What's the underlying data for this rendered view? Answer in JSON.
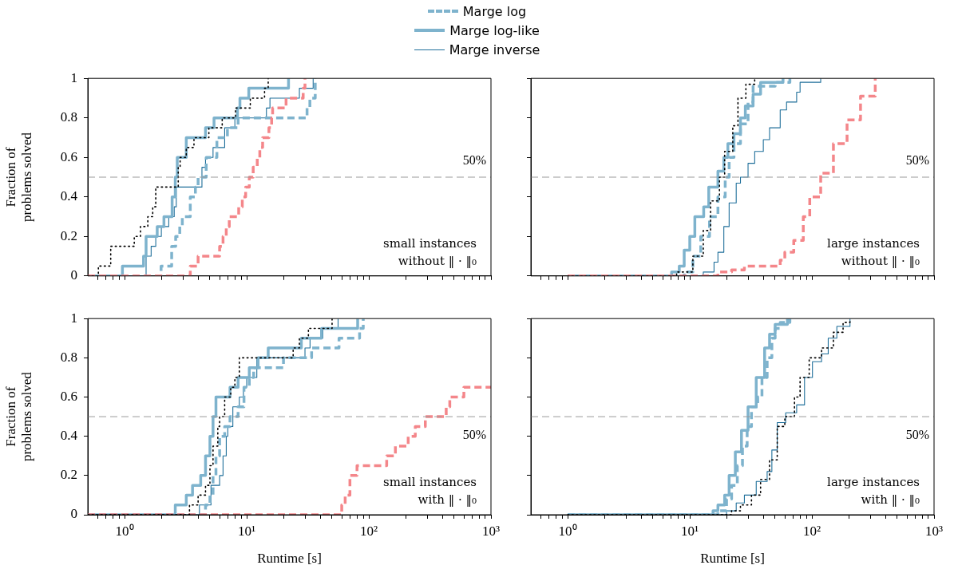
{
  "chart_data": [
    {
      "type": "line",
      "ylabel": "Fraction of problems solved",
      "xlim": [
        0.5,
        1000
      ],
      "ylim": [
        0,
        1
      ],
      "log": "x",
      "tick_labels": "y",
      "legend": "top",
      "xticks": [
        {
          "value": 0.6,
          "label": null
        },
        {
          "value": 0.7,
          "label": null
        },
        {
          "value": 0.8,
          "label": null
        },
        {
          "value": 0.9,
          "label": null
        },
        {
          "value": 1,
          "label": null
        },
        {
          "value": 2,
          "label": null
        },
        {
          "value": 3,
          "label": null
        },
        {
          "value": 4,
          "label": null
        },
        {
          "value": 5,
          "label": null
        },
        {
          "value": 6,
          "label": null
        },
        {
          "value": 7,
          "label": null
        },
        {
          "value": 8,
          "label": null
        },
        {
          "value": 9,
          "label": null
        },
        {
          "value": 10,
          "label": null
        },
        {
          "value": 20,
          "label": null
        },
        {
          "value": 30,
          "label": null
        },
        {
          "value": 40,
          "label": null
        },
        {
          "value": 50,
          "label": null
        },
        {
          "value": 60,
          "label": null
        },
        {
          "value": 70,
          "label": null
        },
        {
          "value": 80,
          "label": null
        },
        {
          "value": 90,
          "label": null
        },
        {
          "value": 100,
          "label": null
        },
        {
          "value": 200,
          "label": null
        },
        {
          "value": 300,
          "label": null
        },
        {
          "value": 400,
          "label": null
        },
        {
          "value": 500,
          "label": null
        },
        {
          "value": 600,
          "label": null
        },
        {
          "value": 700,
          "label": null
        },
        {
          "value": 800,
          "label": null
        },
        {
          "value": 900,
          "label": null
        },
        {
          "value": 1000,
          "label": null
        }
      ],
      "yticks": [
        0,
        0.2,
        0.4,
        0.6,
        0.8,
        1
      ],
      "ref_lines": [
        {
          "axis": "y",
          "value": 0.5,
          "label": "50%",
          "color": "#999999",
          "line_style": "dashed"
        }
      ],
      "annotations": [
        "small instances without ‖ · ‖₀"
      ],
      "series": [
        {
          "color": "#000000",
          "line_style": "dotted",
          "x": [
            0.5,
            0.61,
            0.61,
            0.77,
            0.77,
            1.2,
            1.2,
            1.35,
            1.35,
            1.55,
            1.55,
            1.7,
            1.7,
            1.8,
            1.8,
            2.75,
            2.75,
            2.85,
            2.85,
            3.2,
            3.2,
            3.7,
            3.7,
            4.9,
            4.9,
            6.3,
            6.3,
            8.1,
            8.1,
            10.7,
            10.7,
            14,
            14,
            15,
            15
          ],
          "values": [
            0,
            0,
            0.05,
            0.05,
            0.15,
            0.15,
            0.2,
            0.2,
            0.25,
            0.25,
            0.3,
            0.3,
            0.35,
            0.35,
            0.45,
            0.45,
            0.55,
            0.55,
            0.6,
            0.6,
            0.65,
            0.65,
            0.7,
            0.7,
            0.75,
            0.75,
            0.8,
            0.8,
            0.85,
            0.85,
            0.9,
            0.9,
            0.95,
            0.95,
            1
          ]
        },
        {
          "color": "#f4868a",
          "line_style": "dashed",
          "x": [
            0.5,
            3.45,
            3.45,
            4,
            4,
            6,
            6,
            6.4,
            6.4,
            6.8,
            6.8,
            7.2,
            7.2,
            8.6,
            8.6,
            9.2,
            9.2,
            9.8,
            9.8,
            10.5,
            10.5,
            11.3,
            11.3,
            12.2,
            12.2,
            12.8,
            12.8,
            13.5,
            13.5,
            15.2,
            15.2,
            16,
            16,
            16.3,
            16.3,
            21,
            21,
            29,
            29,
            30,
            30
          ],
          "values": [
            0,
            0,
            0.05,
            0.05,
            0.1,
            0.1,
            0.15,
            0.15,
            0.2,
            0.2,
            0.25,
            0.25,
            0.3,
            0.3,
            0.35,
            0.35,
            0.4,
            0.4,
            0.45,
            0.45,
            0.5,
            0.5,
            0.55,
            0.55,
            0.6,
            0.6,
            0.65,
            0.65,
            0.7,
            0.7,
            0.75,
            0.75,
            0.8,
            0.8,
            0.85,
            0.85,
            0.9,
            0.9,
            0.95,
            0.95,
            1
          ]
        },
        {
          "name": "Marge log",
          "color": "#7eb3cd",
          "line_style": "dashed",
          "x": [
            0.5,
            1.99,
            1.99,
            2.43,
            2.43,
            2.62,
            2.62,
            2.83,
            2.83,
            2.97,
            2.97,
            3.45,
            3.45,
            3.8,
            3.8,
            4,
            4,
            4.66,
            4.66,
            5.7,
            5.7,
            6.95,
            6.95,
            8.5,
            8.5,
            31.2,
            31.2,
            32.9,
            32.9,
            36.4,
            36.4
          ],
          "values": [
            0,
            0,
            0.05,
            0.05,
            0.15,
            0.15,
            0.2,
            0.2,
            0.25,
            0.25,
            0.3,
            0.3,
            0.4,
            0.4,
            0.45,
            0.45,
            0.5,
            0.5,
            0.6,
            0.6,
            0.7,
            0.7,
            0.75,
            0.75,
            0.8,
            0.8,
            0.85,
            0.85,
            0.9,
            0.9,
            1
          ]
        },
        {
          "name": "Marge log-like",
          "color": "#7eb3cd",
          "line_style": "solid",
          "x": [
            0.5,
            0.96,
            0.96,
            1.43,
            1.43,
            1.5,
            1.5,
            1.85,
            1.85,
            2.1,
            2.1,
            2.45,
            2.45,
            2.6,
            2.6,
            2.7,
            2.7,
            3.2,
            3.2,
            4.6,
            4.6,
            5.4,
            5.4,
            8.4,
            8.4,
            8.8,
            8.8,
            10.4,
            10.4,
            22,
            22
          ],
          "values": [
            0,
            0,
            0.05,
            0.05,
            0.1,
            0.1,
            0.2,
            0.2,
            0.25,
            0.25,
            0.3,
            0.3,
            0.4,
            0.4,
            0.5,
            0.5,
            0.6,
            0.6,
            0.7,
            0.7,
            0.75,
            0.75,
            0.8,
            0.8,
            0.85,
            0.85,
            0.9,
            0.9,
            0.95,
            0.95,
            1
          ]
        },
        {
          "name": "Marge inverse",
          "color": "#1f6f9a",
          "line_style": "solid",
          "x": [
            0.5,
            1.5,
            1.5,
            1.65,
            1.65,
            1.8,
            1.8,
            2,
            2,
            2.3,
            2.3,
            2.55,
            2.55,
            2.65,
            2.65,
            4.3,
            4.3,
            4.6,
            4.6,
            5.3,
            5.3,
            6.6,
            6.6,
            8,
            8,
            14.5,
            14.5,
            15.5,
            15.5,
            27,
            27,
            35,
            35
          ],
          "values": [
            0,
            0,
            0.1,
            0.1,
            0.15,
            0.15,
            0.2,
            0.2,
            0.25,
            0.25,
            0.3,
            0.3,
            0.35,
            0.35,
            0.45,
            0.45,
            0.55,
            0.55,
            0.6,
            0.6,
            0.65,
            0.65,
            0.75,
            0.75,
            0.8,
            0.8,
            0.85,
            0.85,
            0.9,
            0.9,
            0.95,
            0.95,
            1
          ]
        }
      ]
    },
    {
      "type": "line",
      "xlim": [
        0.5,
        1000
      ],
      "ylim": [
        0,
        1
      ],
      "log": "x",
      "tick_labels": false,
      "xticks": [
        {
          "value": 0.6,
          "label": null
        },
        {
          "value": 0.7,
          "label": null
        },
        {
          "value": 0.8,
          "label": null
        },
        {
          "value": 0.9,
          "label": null
        },
        {
          "value": 1,
          "label": null
        },
        {
          "value": 2,
          "label": null
        },
        {
          "value": 3,
          "label": null
        },
        {
          "value": 4,
          "label": null
        },
        {
          "value": 5,
          "label": null
        },
        {
          "value": 6,
          "label": null
        },
        {
          "value": 7,
          "label": null
        },
        {
          "value": 8,
          "label": null
        },
        {
          "value": 9,
          "label": null
        },
        {
          "value": 10,
          "label": null
        },
        {
          "value": 20,
          "label": null
        },
        {
          "value": 30,
          "label": null
        },
        {
          "value": 40,
          "label": null
        },
        {
          "value": 50,
          "label": null
        },
        {
          "value": 60,
          "label": null
        },
        {
          "value": 70,
          "label": null
        },
        {
          "value": 80,
          "label": null
        },
        {
          "value": 90,
          "label": null
        },
        {
          "value": 100,
          "label": null
        },
        {
          "value": 200,
          "label": null
        },
        {
          "value": 300,
          "label": null
        },
        {
          "value": 400,
          "label": null
        },
        {
          "value": 500,
          "label": null
        },
        {
          "value": 600,
          "label": null
        },
        {
          "value": 700,
          "label": null
        },
        {
          "value": 800,
          "label": null
        },
        {
          "value": 900,
          "label": null
        },
        {
          "value": 1000,
          "label": null
        }
      ],
      "yticks": [
        {
          "value": 0,
          "label": null
        },
        {
          "value": 0.2,
          "label": null
        },
        {
          "value": 0.4,
          "label": null
        },
        {
          "value": 0.6,
          "label": null
        },
        {
          "value": 0.8,
          "label": null
        },
        {
          "value": 1,
          "label": null
        }
      ],
      "ref_lines": [
        {
          "axis": "y",
          "value": 0.5,
          "label": "50%",
          "color": "#999999",
          "line_style": "dashed"
        }
      ],
      "annotations": [
        "large instances without ‖ · ‖₀"
      ],
      "series": [
        {
          "color": "#000000",
          "line_style": "dotted",
          "x": [
            1,
            7.8,
            7.8,
            10.6,
            10.6,
            12.9,
            12.9,
            14.8,
            14.8,
            17.5,
            17.5,
            19.3,
            19.3,
            22.5,
            22.5,
            24.8,
            24.8,
            28.8,
            28.8,
            34,
            34
          ],
          "values": [
            0,
            0,
            0.02,
            0.02,
            0.1,
            0.1,
            0.23,
            0.23,
            0.38,
            0.38,
            0.5,
            0.5,
            0.63,
            0.63,
            0.76,
            0.76,
            0.9,
            0.9,
            0.97,
            0.97,
            1
          ]
        },
        {
          "color": "#f4868a",
          "line_style": "dashed",
          "x": [
            1,
            17,
            17,
            22,
            22,
            28,
            28,
            55,
            55,
            60,
            60,
            71,
            71,
            85,
            85,
            96,
            96,
            118,
            118,
            150,
            150,
            194,
            194,
            250,
            250,
            330,
            330
          ],
          "values": [
            0,
            0,
            0.02,
            0.02,
            0.03,
            0.03,
            0.05,
            0.05,
            0.08,
            0.08,
            0.12,
            0.12,
            0.18,
            0.18,
            0.3,
            0.3,
            0.4,
            0.4,
            0.52,
            0.52,
            0.67,
            0.67,
            0.79,
            0.79,
            0.91,
            0.91,
            1
          ]
        },
        {
          "color": "#7eb3cd",
          "line_style": "dashed",
          "x": [
            1,
            9,
            9,
            10.6,
            10.6,
            12.3,
            12.3,
            14.5,
            14.5,
            17,
            17,
            19.5,
            19.5,
            21,
            21,
            23,
            23,
            26,
            26,
            30,
            30,
            33,
            33,
            50,
            50,
            66,
            66
          ],
          "values": [
            0,
            0,
            0.02,
            0.02,
            0.1,
            0.1,
            0.2,
            0.2,
            0.3,
            0.3,
            0.4,
            0.4,
            0.5,
            0.5,
            0.6,
            0.6,
            0.67,
            0.67,
            0.77,
            0.77,
            0.88,
            0.88,
            0.96,
            0.96,
            0.98,
            0.98,
            1
          ]
        },
        {
          "color": "#7eb3cd",
          "line_style": "solid",
          "x": [
            1,
            7.1,
            7.1,
            8.2,
            8.2,
            9,
            9,
            10,
            10,
            11,
            11,
            13,
            13,
            14.3,
            14.3,
            17,
            17,
            19,
            19,
            20.5,
            20.5,
            23,
            23,
            26,
            26,
            28.5,
            28.5,
            33,
            33,
            38,
            38,
            58,
            58
          ],
          "values": [
            0,
            0,
            0.02,
            0.02,
            0.05,
            0.05,
            0.13,
            0.13,
            0.2,
            0.2,
            0.3,
            0.3,
            0.35,
            0.35,
            0.45,
            0.45,
            0.53,
            0.53,
            0.6,
            0.6,
            0.67,
            0.67,
            0.72,
            0.72,
            0.8,
            0.8,
            0.86,
            0.86,
            0.92,
            0.92,
            0.98,
            0.98,
            1
          ]
        },
        {
          "color": "#1f6f9a",
          "line_style": "solid",
          "x": [
            1,
            12.9,
            12.9,
            15.8,
            15.8,
            17,
            17,
            19,
            19,
            21,
            21,
            24,
            24,
            26,
            26,
            30,
            30,
            34,
            34,
            40,
            40,
            45,
            45,
            55,
            55,
            62,
            62,
            75,
            75,
            80,
            80,
            118,
            118
          ],
          "values": [
            0,
            0,
            0.02,
            0.02,
            0.07,
            0.07,
            0.12,
            0.12,
            0.25,
            0.25,
            0.37,
            0.37,
            0.47,
            0.47,
            0.5,
            0.5,
            0.57,
            0.57,
            0.63,
            0.63,
            0.69,
            0.69,
            0.75,
            0.75,
            0.84,
            0.84,
            0.88,
            0.88,
            0.93,
            0.93,
            0.98,
            0.98,
            1
          ]
        }
      ]
    },
    {
      "type": "line",
      "xlabel": "Runtime [s]",
      "ylabel": "Fraction of problems solved",
      "xlim": [
        0.5,
        1000
      ],
      "ylim": [
        0,
        1
      ],
      "log": "x",
      "xticks": [
        {
          "value": 0.6,
          "label": null
        },
        {
          "value": 0.7,
          "label": null
        },
        {
          "value": 0.8,
          "label": null
        },
        {
          "value": 0.9,
          "label": null
        },
        {
          "value": 1,
          "label": "10⁰"
        },
        {
          "value": 2,
          "label": null
        },
        {
          "value": 3,
          "label": null
        },
        {
          "value": 4,
          "label": null
        },
        {
          "value": 5,
          "label": null
        },
        {
          "value": 6,
          "label": null
        },
        {
          "value": 7,
          "label": null
        },
        {
          "value": 8,
          "label": null
        },
        {
          "value": 9,
          "label": null
        },
        {
          "value": 10,
          "label": "10¹"
        },
        {
          "value": 20,
          "label": null
        },
        {
          "value": 30,
          "label": null
        },
        {
          "value": 40,
          "label": null
        },
        {
          "value": 50,
          "label": null
        },
        {
          "value": 60,
          "label": null
        },
        {
          "value": 70,
          "label": null
        },
        {
          "value": 80,
          "label": null
        },
        {
          "value": 90,
          "label": null
        },
        {
          "value": 100,
          "label": "10²"
        },
        {
          "value": 200,
          "label": null
        },
        {
          "value": 300,
          "label": null
        },
        {
          "value": 400,
          "label": null
        },
        {
          "value": 500,
          "label": null
        },
        {
          "value": 600,
          "label": null
        },
        {
          "value": 700,
          "label": null
        },
        {
          "value": 800,
          "label": null
        },
        {
          "value": 900,
          "label": null
        },
        {
          "value": 1000,
          "label": "10³"
        }
      ],
      "yticks": [
        0,
        0.2,
        0.4,
        0.6,
        0.8,
        1
      ],
      "ref_lines": [
        {
          "axis": "y",
          "value": 0.5,
          "label": "50%",
          "color": "#999999",
          "line_style": "dashed"
        }
      ],
      "annotations": [
        "small instances with ‖ · ‖₀"
      ],
      "series": [
        {
          "color": "#000000",
          "line_style": "dotted",
          "x": [
            0.5,
            3.4,
            3.4,
            4,
            4,
            4.6,
            4.6,
            5,
            5,
            5.3,
            5.3,
            5.8,
            5.8,
            6,
            6,
            6.6,
            6.6,
            7.4,
            7.4,
            8,
            8,
            8.7,
            8.7,
            24,
            24,
            27,
            27,
            32,
            32,
            50,
            50
          ],
          "values": [
            0,
            0,
            0.05,
            0.05,
            0.1,
            0.1,
            0.15,
            0.15,
            0.25,
            0.25,
            0.35,
            0.35,
            0.45,
            0.45,
            0.5,
            0.5,
            0.6,
            0.6,
            0.65,
            0.65,
            0.7,
            0.7,
            0.8,
            0.8,
            0.85,
            0.85,
            0.9,
            0.9,
            0.95,
            0.95,
            1
          ]
        },
        {
          "color": "#f4868a",
          "line_style": "dashed",
          "x": [
            0.5,
            60,
            60,
            64,
            64,
            70,
            70,
            80,
            80,
            140,
            140,
            165,
            165,
            210,
            210,
            240,
            240,
            290,
            290,
            430,
            430,
            460,
            460,
            600,
            600,
            1000
          ],
          "values": [
            0,
            0,
            0.05,
            0.05,
            0.1,
            0.1,
            0.2,
            0.2,
            0.25,
            0.25,
            0.3,
            0.3,
            0.35,
            0.35,
            0.4,
            0.4,
            0.45,
            0.45,
            0.5,
            0.5,
            0.55,
            0.55,
            0.6,
            0.6,
            0.65,
            0.65
          ]
        },
        {
          "color": "#7eb3cd",
          "line_style": "dashed",
          "x": [
            0.5,
            4.6,
            4.6,
            5,
            5,
            5.3,
            5.3,
            5.6,
            5.6,
            6,
            6,
            6.6,
            6.6,
            7.3,
            7.3,
            8.5,
            8.5,
            9.5,
            9.5,
            10.5,
            10.5,
            11.4,
            11.4,
            20,
            20,
            34,
            34,
            57,
            57,
            84,
            84,
            90,
            90
          ],
          "values": [
            0,
            0,
            0.05,
            0.05,
            0.1,
            0.1,
            0.2,
            0.2,
            0.3,
            0.3,
            0.4,
            0.4,
            0.45,
            0.45,
            0.5,
            0.5,
            0.55,
            0.55,
            0.65,
            0.65,
            0.7,
            0.7,
            0.75,
            0.75,
            0.8,
            0.8,
            0.85,
            0.85,
            0.9,
            0.9,
            0.95,
            0.95,
            1
          ]
        },
        {
          "color": "#7eb3cd",
          "line_style": "solid",
          "x": [
            0.5,
            2.6,
            2.6,
            3.2,
            3.2,
            3.6,
            3.6,
            4.2,
            4.2,
            4.6,
            4.6,
            5,
            5,
            5.3,
            5.3,
            5.6,
            5.6,
            7.3,
            7.3,
            8.5,
            8.5,
            10.5,
            10.5,
            12.4,
            12.4,
            15,
            15,
            28,
            28,
            41,
            41,
            81,
            81
          ],
          "values": [
            0,
            0,
            0.05,
            0.05,
            0.1,
            0.1,
            0.15,
            0.15,
            0.2,
            0.2,
            0.3,
            0.3,
            0.4,
            0.4,
            0.5,
            0.5,
            0.6,
            0.6,
            0.65,
            0.65,
            0.7,
            0.7,
            0.75,
            0.75,
            0.8,
            0.8,
            0.85,
            0.85,
            0.9,
            0.9,
            0.95,
            0.95,
            1
          ]
        },
        {
          "color": "#1f6f9a",
          "line_style": "solid",
          "x": [
            0.5,
            4.1,
            4.1,
            5.1,
            5.1,
            6,
            6,
            6.4,
            6.4,
            6.8,
            6.8,
            7,
            7,
            7.7,
            7.7,
            8.7,
            8.7,
            9.4,
            9.4,
            10,
            10,
            12.1,
            12.1,
            30,
            30,
            33,
            33,
            42,
            42,
            56,
            56
          ],
          "values": [
            0,
            0,
            0.05,
            0.05,
            0.15,
            0.15,
            0.2,
            0.2,
            0.3,
            0.3,
            0.4,
            0.4,
            0.45,
            0.45,
            0.55,
            0.55,
            0.6,
            0.6,
            0.65,
            0.65,
            0.7,
            0.7,
            0.8,
            0.8,
            0.85,
            0.85,
            0.9,
            0.9,
            0.95,
            0.95,
            1
          ]
        }
      ]
    },
    {
      "type": "line",
      "xlabel": "Runtime [s]",
      "xlim": [
        0.5,
        1000
      ],
      "ylim": [
        0,
        1
      ],
      "log": "x",
      "tick_labels": "x",
      "xticks": [
        {
          "value": 0.6,
          "label": null
        },
        {
          "value": 0.7,
          "label": null
        },
        {
          "value": 0.8,
          "label": null
        },
        {
          "value": 0.9,
          "label": null
        },
        {
          "value": 1,
          "label": "10⁰"
        },
        {
          "value": 2,
          "label": null
        },
        {
          "value": 3,
          "label": null
        },
        {
          "value": 4,
          "label": null
        },
        {
          "value": 5,
          "label": null
        },
        {
          "value": 6,
          "label": null
        },
        {
          "value": 7,
          "label": null
        },
        {
          "value": 8,
          "label": null
        },
        {
          "value": 9,
          "label": null
        },
        {
          "value": 10,
          "label": "10¹"
        },
        {
          "value": 20,
          "label": null
        },
        {
          "value": 30,
          "label": null
        },
        {
          "value": 40,
          "label": null
        },
        {
          "value": 50,
          "label": null
        },
        {
          "value": 60,
          "label": null
        },
        {
          "value": 70,
          "label": null
        },
        {
          "value": 80,
          "label": null
        },
        {
          "value": 90,
          "label": null
        },
        {
          "value": 100,
          "label": "10²"
        },
        {
          "value": 200,
          "label": null
        },
        {
          "value": 300,
          "label": null
        },
        {
          "value": 400,
          "label": null
        },
        {
          "value": 500,
          "label": null
        },
        {
          "value": 600,
          "label": null
        },
        {
          "value": 700,
          "label": null
        },
        {
          "value": 800,
          "label": null
        },
        {
          "value": 900,
          "label": null
        },
        {
          "value": 1000,
          "label": "10³"
        }
      ],
      "yticks": [
        {
          "value": 0,
          "label": null
        },
        {
          "value": 0.2,
          "label": null
        },
        {
          "value": 0.4,
          "label": null
        },
        {
          "value": 0.6,
          "label": null
        },
        {
          "value": 0.8,
          "label": null
        },
        {
          "value": 1,
          "label": null
        }
      ],
      "ref_lines": [
        {
          "axis": "y",
          "value": 0.5,
          "label": "50%",
          "color": "#999999",
          "line_style": "dashed"
        }
      ],
      "annotations": [
        "large instances with ‖ · ‖₀"
      ],
      "series": [
        {
          "color": "#000000",
          "line_style": "dotted",
          "x": [
            1,
            22,
            22,
            26,
            26,
            32,
            32,
            38,
            38,
            45,
            45,
            52,
            52,
            60,
            60,
            72,
            72,
            80,
            80,
            95,
            95,
            120,
            120,
            150,
            150,
            180,
            180,
            205,
            205
          ],
          "values": [
            0,
            0,
            0.02,
            0.02,
            0.05,
            0.05,
            0.1,
            0.1,
            0.18,
            0.18,
            0.28,
            0.28,
            0.45,
            0.45,
            0.5,
            0.5,
            0.6,
            0.6,
            0.7,
            0.7,
            0.8,
            0.8,
            0.85,
            0.85,
            0.93,
            0.93,
            0.98,
            0.98,
            1
          ]
        },
        {
          "color": "#7eb3cd",
          "line_style": "dashed",
          "x": [
            1,
            17,
            17,
            20,
            20,
            22,
            22,
            24.5,
            24.5,
            27,
            27,
            29.5,
            29.5,
            32,
            32,
            36,
            36,
            39,
            39,
            43,
            43,
            47,
            47,
            50,
            50,
            55,
            55,
            66,
            66
          ],
          "values": [
            0,
            0,
            0.02,
            0.02,
            0.08,
            0.08,
            0.15,
            0.15,
            0.25,
            0.25,
            0.35,
            0.35,
            0.45,
            0.45,
            0.55,
            0.55,
            0.6,
            0.6,
            0.7,
            0.7,
            0.8,
            0.8,
            0.9,
            0.9,
            0.95,
            0.95,
            0.98,
            0.98,
            1
          ]
        },
        {
          "color": "#7eb3cd",
          "line_style": "solid",
          "x": [
            1,
            15.5,
            15.5,
            17,
            17,
            19.3,
            19.3,
            21,
            21,
            23.6,
            23.6,
            26.5,
            26.5,
            30,
            30,
            35,
            35,
            41,
            41,
            45,
            45,
            50,
            50,
            63,
            63
          ],
          "values": [
            0,
            0,
            0.02,
            0.02,
            0.05,
            0.05,
            0.1,
            0.1,
            0.2,
            0.2,
            0.32,
            0.32,
            0.43,
            0.43,
            0.55,
            0.55,
            0.7,
            0.7,
            0.85,
            0.85,
            0.92,
            0.92,
            0.97,
            0.97,
            1
          ]
        },
        {
          "color": "#1f6f9a",
          "line_style": "solid",
          "x": [
            1,
            20,
            20,
            24,
            24,
            28,
            28,
            35,
            35,
            43,
            43,
            47,
            47,
            52,
            52,
            61,
            61,
            75,
            75,
            87,
            87,
            101,
            101,
            120,
            120,
            136,
            136,
            160,
            160,
            205,
            205
          ],
          "values": [
            0,
            0,
            0.02,
            0.02,
            0.06,
            0.06,
            0.1,
            0.1,
            0.17,
            0.17,
            0.22,
            0.22,
            0.33,
            0.33,
            0.47,
            0.47,
            0.52,
            0.52,
            0.56,
            0.56,
            0.7,
            0.7,
            0.78,
            0.78,
            0.82,
            0.82,
            0.9,
            0.9,
            0.96,
            0.96,
            1
          ]
        }
      ]
    }
  ]
}
